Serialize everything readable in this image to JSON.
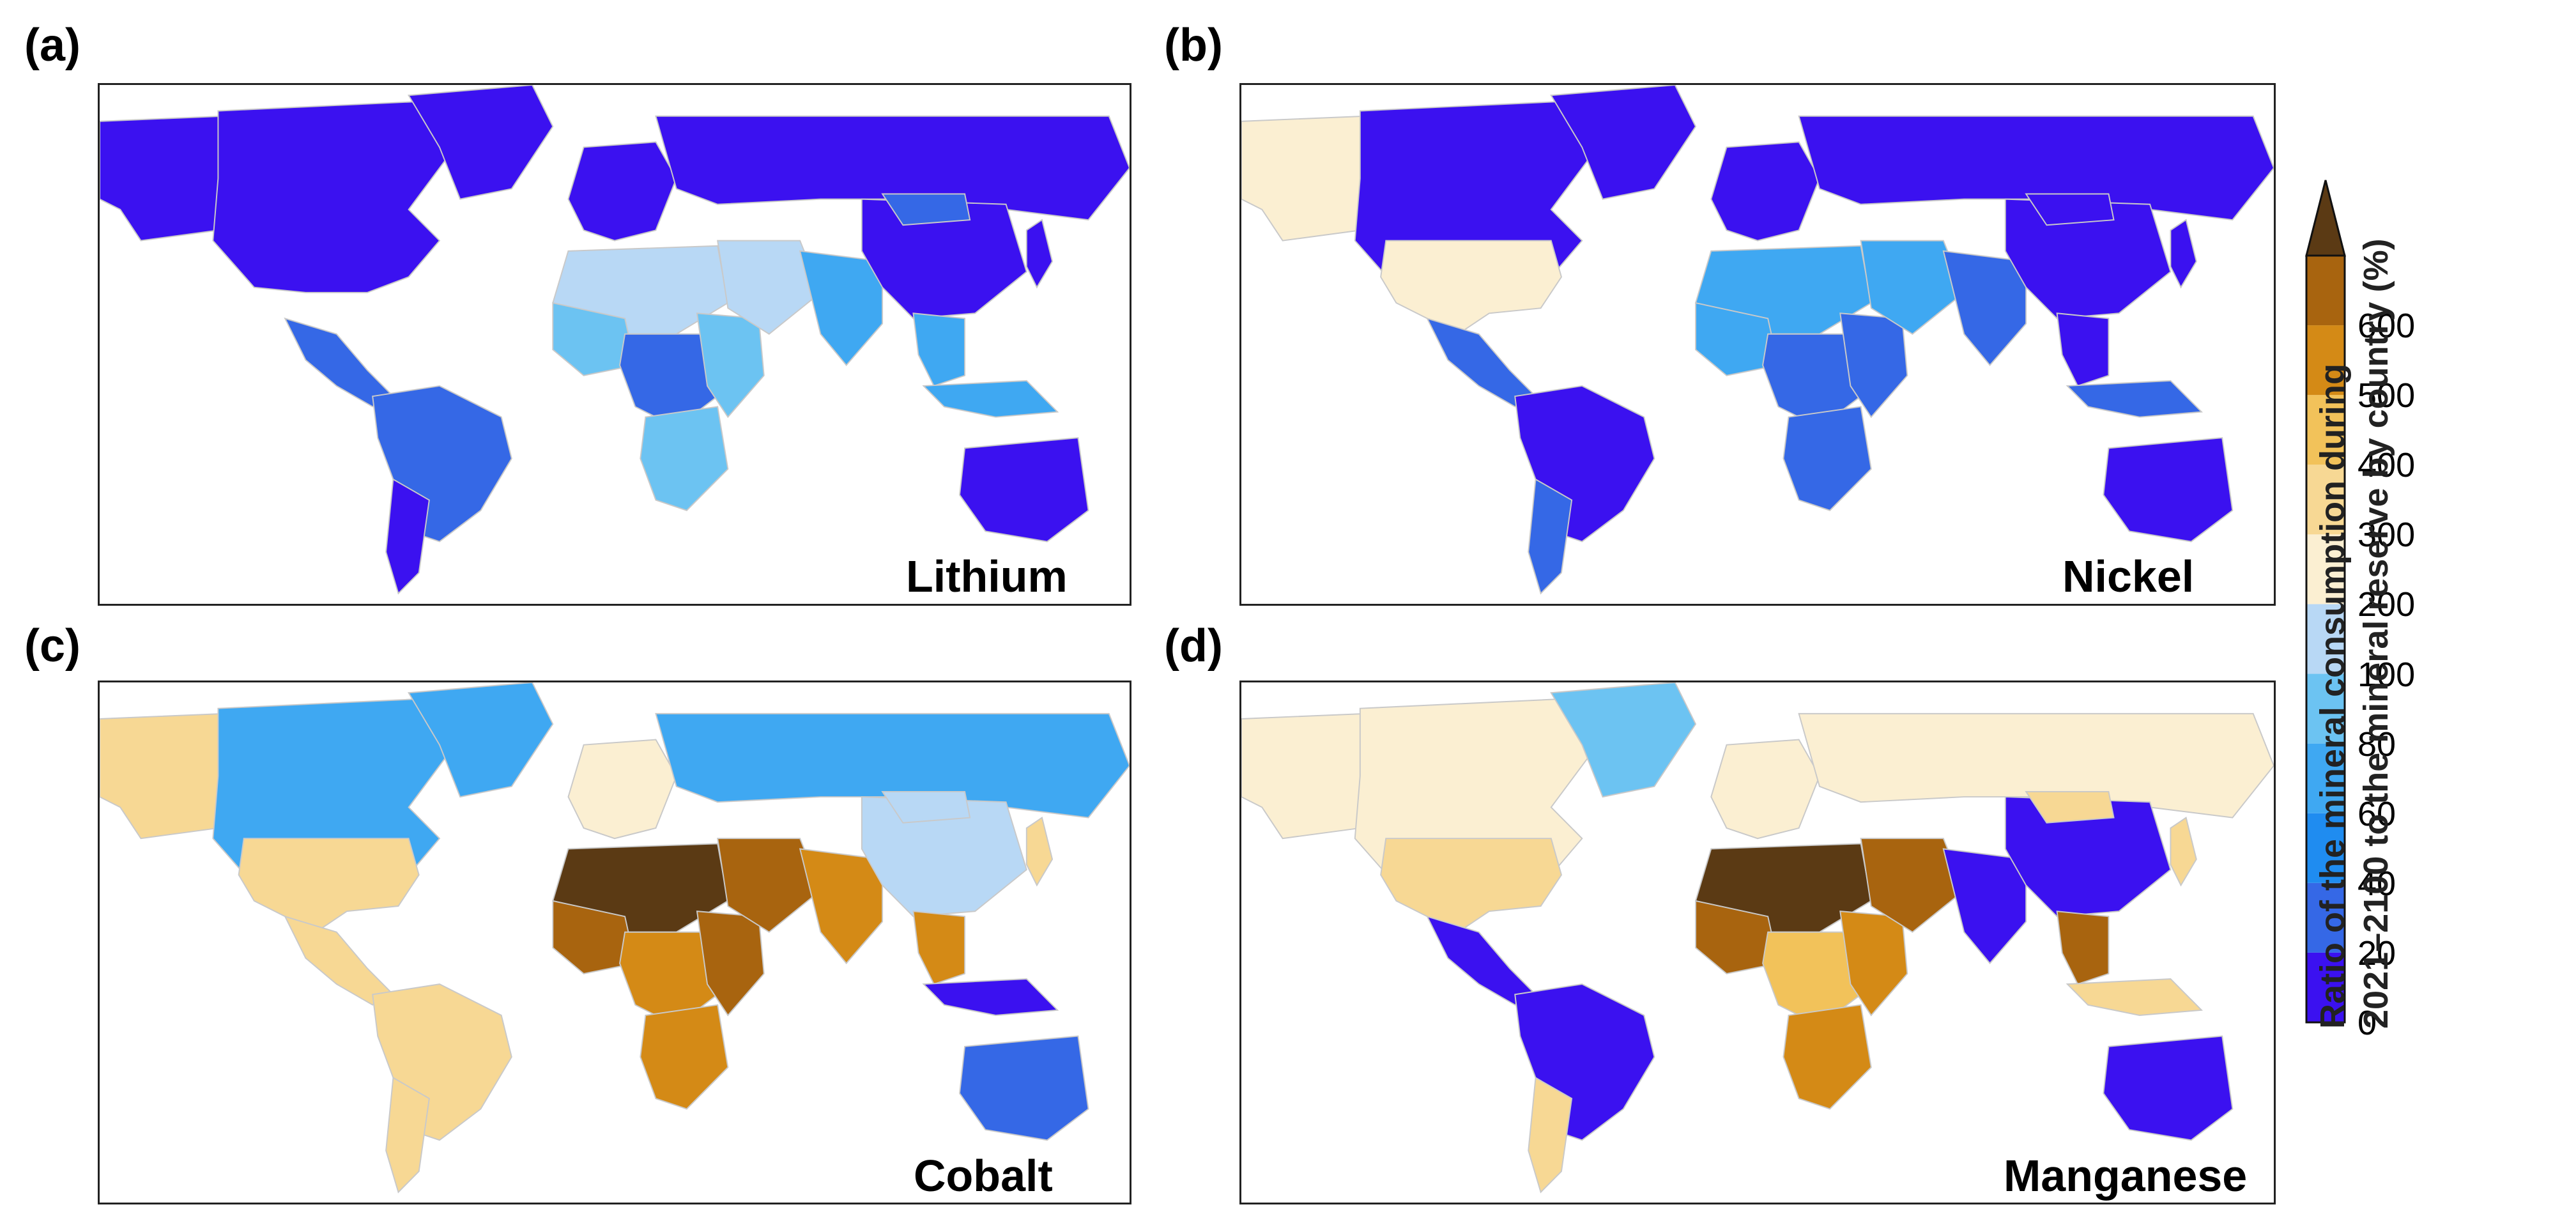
{
  "panels": [
    {
      "letter": "(a)",
      "mineral": "Lithium",
      "regions": {
        "northAmerica": "#3b11f0",
        "greenland": "#3b11f0",
        "centralAmerica": "#3568e6",
        "southAmerica": "#3568e6",
        "southernCone": "#3b11f0",
        "europe": "#3b11f0",
        "russia": "#3b11f0",
        "northAfrica": "#b8d8f5",
        "westAfrica": "#6cc3f2",
        "centralAfrica": "#3568e6",
        "eastAfrica": "#6cc3f2",
        "southernAfrica": "#6cc3f2",
        "middleEast": "#b8d8f5",
        "southAsia": "#3fa8f2",
        "china": "#3b11f0",
        "mongolia": "#3568e6",
        "seAsia": "#3fa8f2",
        "indonesia": "#3fa8f2",
        "australia": "#3b11f0",
        "japan": "#3b11f0",
        "alaska": "#3b11f0"
      }
    },
    {
      "letter": "(b)",
      "mineral": "Nickel",
      "regions": {
        "northAmerica": "#3b11f0",
        "greenland": "#3b11f0",
        "usa": "#fbefd2",
        "centralAmerica": "#3568e6",
        "southAmerica": "#3b11f0",
        "southernCone": "#3568e6",
        "europe": "#3b11f0",
        "russia": "#3b11f0",
        "northAfrica": "#3fa8f2",
        "westAfrica": "#3fa8f2",
        "centralAfrica": "#3568e6",
        "eastAfrica": "#3568e6",
        "southernAfrica": "#3568e6",
        "middleEast": "#3fa8f2",
        "southAsia": "#3568e6",
        "china": "#3b11f0",
        "mongolia": "#3b11f0",
        "seAsia": "#3b11f0",
        "indonesia": "#3568e6",
        "australia": "#3b11f0",
        "japan": "#3b11f0",
        "alaska": "#fbefd2"
      }
    },
    {
      "letter": "(c)",
      "mineral": "Cobalt",
      "regions": {
        "northAmerica": "#3fa8f2",
        "greenland": "#3fa8f2",
        "usa": "#f7d894",
        "centralAmerica": "#f7d894",
        "southAmerica": "#f7d894",
        "southernCone": "#f7d894",
        "europe": "#fbefd2",
        "russia": "#3fa8f2",
        "northAfrica": "#5b3a14",
        "westAfrica": "#a8640f",
        "centralAfrica": "#d48a16",
        "eastAfrica": "#a8640f",
        "southernAfrica": "#d48a16",
        "middleEast": "#a8640f",
        "southAsia": "#d48a16",
        "china": "#b8d8f5",
        "mongolia": "#b8d8f5",
        "seAsia": "#d48a16",
        "indonesia": "#3b11f0",
        "australia": "#3568e6",
        "japan": "#f7d894",
        "alaska": "#f7d894"
      }
    },
    {
      "letter": "(d)",
      "mineral": "Manganese",
      "regions": {
        "northAmerica": "#fbefd2",
        "greenland": "#6cc3f2",
        "usa": "#f7d894",
        "centralAmerica": "#3b11f0",
        "southAmerica": "#3b11f0",
        "southernCone": "#f7d894",
        "europe": "#fbefd2",
        "russia": "#fbefd2",
        "northAfrica": "#5b3a14",
        "westAfrica": "#a8640f",
        "centralAfrica": "#f2c25a",
        "eastAfrica": "#d48a16",
        "southernAfrica": "#d48a16",
        "middleEast": "#a8640f",
        "southAsia": "#3b11f0",
        "china": "#3b11f0",
        "mongolia": "#f7d894",
        "seAsia": "#a8640f",
        "indonesia": "#f7d894",
        "australia": "#3b11f0",
        "japan": "#f7d894",
        "alaska": "#fbefd2"
      }
    }
  ],
  "colorbar": {
    "title_line1": "Ratio of the mineral consumption during",
    "title_line2": "2021–2100 to the mineral reserve by country (%)",
    "ticks": [
      "0",
      "20",
      "40",
      "60",
      "80",
      "100",
      "200",
      "300",
      "400",
      "500",
      "600"
    ],
    "colors": [
      "#3b11f0",
      "#3568e6",
      "#1f8cf0",
      "#3fa8f2",
      "#6cc3f2",
      "#b8d8f5",
      "#fbefd2",
      "#f7d894",
      "#f2c25a",
      "#d48a16",
      "#a8640f"
    ],
    "extend_color": "#5b3a14"
  }
}
